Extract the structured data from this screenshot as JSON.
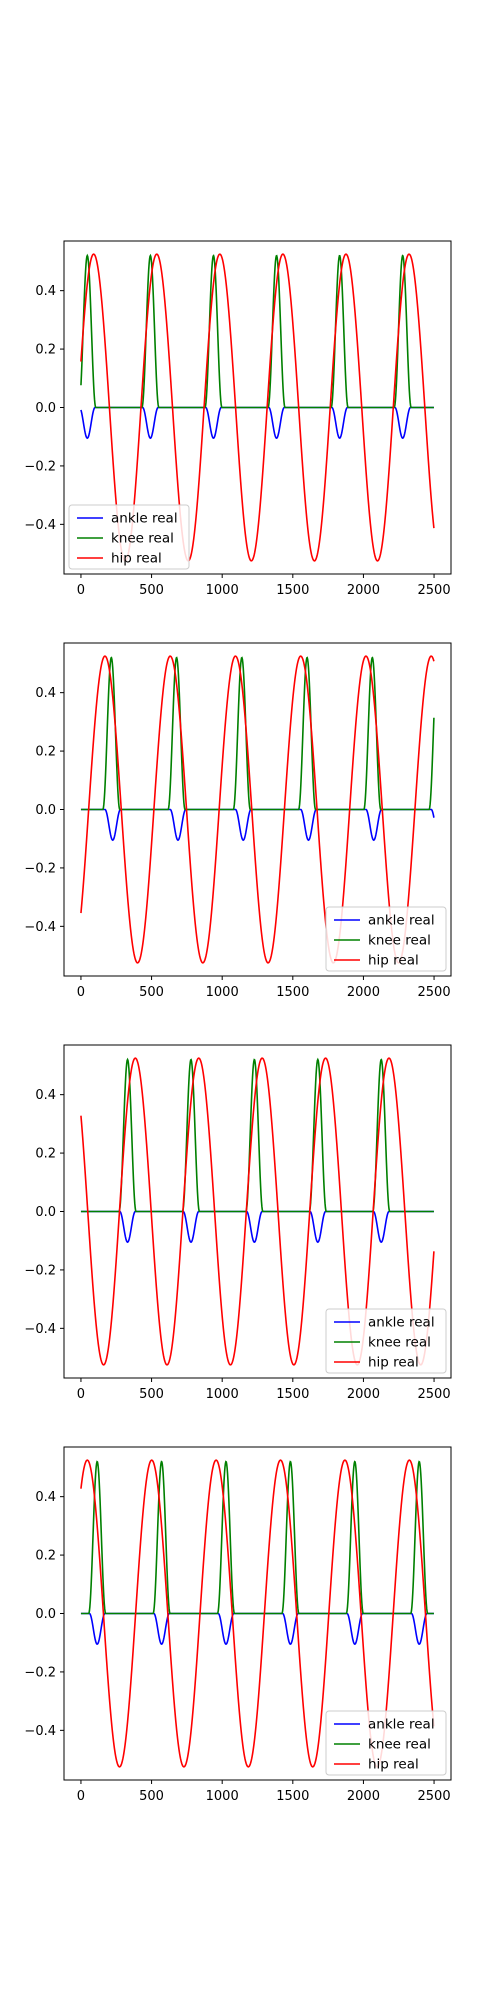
{
  "colors": {
    "ankle": "#0000ff",
    "knee": "#008000",
    "hip": "#ff0000",
    "axes": "#000000",
    "legend_border": "#cccccc"
  },
  "chart_data": [
    {
      "type": "line",
      "title": "",
      "xlabel": "",
      "ylabel": "",
      "xlim": [
        -120,
        2620
      ],
      "ylim": [
        -0.57,
        0.57
      ],
      "xticks": [
        0,
        500,
        1000,
        1500,
        2000,
        2500
      ],
      "xtick_labels": [
        "0",
        "500",
        "1000",
        "1500",
        "2000",
        "2500"
      ],
      "yticks": [
        -0.4,
        -0.2,
        0.0,
        0.2,
        0.4
      ],
      "ytick_labels": [
        "−0.4",
        "−0.2",
        "0.0",
        "0.2",
        "0.4"
      ],
      "grid": false,
      "legend_position": "lower-left",
      "period": 446.6,
      "phase_offset": -45,
      "x_range": [
        0,
        2500
      ],
      "series": [
        {
          "name": "ankle real",
          "color_key": "ankle",
          "shape": "ankle",
          "amplitude": 0.105,
          "peak_x": 0,
          "width": 110
        },
        {
          "name": "knee real",
          "color_key": "knee",
          "shape": "knee",
          "amplitude": 0.52,
          "peak_x": 0,
          "width": 120
        },
        {
          "name": "hip real",
          "color_key": "hip",
          "shape": "hip",
          "amplitude": 0.525,
          "peak_x": 45,
          "width": 0
        }
      ]
    },
    {
      "type": "line",
      "title": "",
      "xlabel": "",
      "ylabel": "",
      "xlim": [
        -120,
        2620
      ],
      "ylim": [
        -0.57,
        0.57
      ],
      "xticks": [
        0,
        500,
        1000,
        1500,
        2000,
        2500
      ],
      "xtick_labels": [
        "0",
        "500",
        "1000",
        "1500",
        "2000",
        "2500"
      ],
      "yticks": [
        -0.4,
        -0.2,
        0.0,
        0.2,
        0.4
      ],
      "ytick_labels": [
        "−0.4",
        "−0.2",
        "0.0",
        "0.2",
        "0.4"
      ],
      "grid": false,
      "legend_position": "lower-right",
      "period": 462,
      "phase_offset": 0,
      "x_range": [
        0,
        2500
      ],
      "series": [
        {
          "name": "ankle real",
          "color_key": "ankle",
          "shape": "ankle",
          "amplitude": 0.105,
          "peak_x": 225,
          "width": 110
        },
        {
          "name": "knee real",
          "color_key": "knee",
          "shape": "knee",
          "amplitude": 0.52,
          "peak_x": 215,
          "width": 120
        },
        {
          "name": "hip real",
          "color_key": "hip",
          "shape": "hip",
          "amplitude": 0.525,
          "peak_x": 170,
          "width": 0
        }
      ]
    },
    {
      "type": "line",
      "title": "",
      "xlabel": "",
      "ylabel": "",
      "xlim": [
        -120,
        2620
      ],
      "ylim": [
        -0.57,
        0.57
      ],
      "xticks": [
        0,
        500,
        1000,
        1500,
        2000,
        2500
      ],
      "xtick_labels": [
        "0",
        "500",
        "1000",
        "1500",
        "2000",
        "2500"
      ],
      "yticks": [
        -0.4,
        -0.2,
        0.0,
        0.2,
        0.4
      ],
      "ytick_labels": [
        "−0.4",
        "−0.2",
        "0.0",
        "0.2",
        "0.4"
      ],
      "grid": false,
      "legend_position": "lower-right",
      "period": 449,
      "phase_offset": 0,
      "x_range": [
        0,
        2500
      ],
      "series": [
        {
          "name": "ankle real",
          "color_key": "ankle",
          "shape": "ankle",
          "amplitude": 0.105,
          "peak_x": 330,
          "width": 110
        },
        {
          "name": "knee real",
          "color_key": "knee",
          "shape": "knee",
          "amplitude": 0.52,
          "peak_x": 330,
          "width": 120
        },
        {
          "name": "hip real",
          "color_key": "hip",
          "shape": "hip",
          "amplitude": 0.525,
          "peak_x": 385,
          "width": 0
        }
      ]
    },
    {
      "type": "line",
      "title": "",
      "xlabel": "",
      "ylabel": "",
      "xlim": [
        -120,
        2620
      ],
      "ylim": [
        -0.57,
        0.57
      ],
      "xticks": [
        0,
        500,
        1000,
        1500,
        2000,
        2500
      ],
      "xtick_labels": [
        "0",
        "500",
        "1000",
        "1500",
        "2000",
        "2500"
      ],
      "yticks": [
        -0.4,
        -0.2,
        0.0,
        0.2,
        0.4
      ],
      "ytick_labels": [
        "−0.4",
        "−0.2",
        "0.0",
        "0.2",
        "0.4"
      ],
      "grid": false,
      "legend_position": "lower-right",
      "period": 456,
      "phase_offset": 0,
      "x_range": [
        0,
        2500
      ],
      "series": [
        {
          "name": "ankle real",
          "color_key": "ankle",
          "shape": "ankle",
          "amplitude": 0.105,
          "peak_x": 115,
          "width": 110
        },
        {
          "name": "knee real",
          "color_key": "knee",
          "shape": "knee",
          "amplitude": 0.52,
          "peak_x": 115,
          "width": 120
        },
        {
          "name": "hip real",
          "color_key": "hip",
          "shape": "hip",
          "amplitude": 0.525,
          "peak_x": 45,
          "width": 0
        }
      ]
    }
  ]
}
